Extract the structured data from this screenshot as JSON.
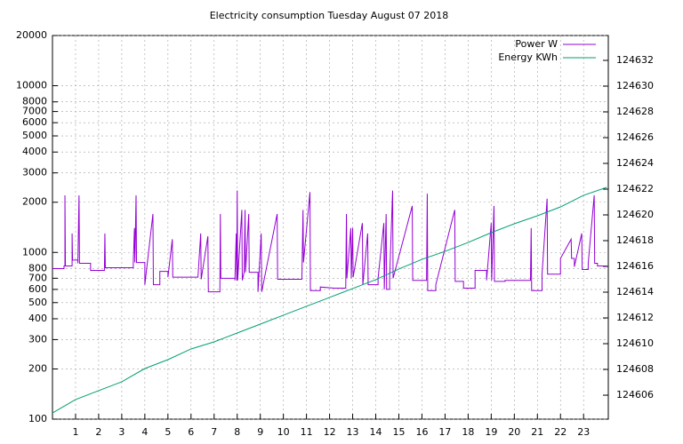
{
  "chart_data": {
    "type": "line",
    "title": "Electricity consumption Tuesday August 07 2018",
    "xlim": [
      0,
      24.07
    ],
    "xticks": [
      1,
      2,
      3,
      4,
      5,
      6,
      7,
      8,
      9,
      10,
      11,
      12,
      13,
      14,
      15,
      16,
      17,
      18,
      19,
      20,
      21,
      22,
      23
    ],
    "ylim": [
      100,
      20000
    ],
    "ylog": true,
    "yticks": [
      100,
      200,
      300,
      400,
      500,
      600,
      700,
      800,
      1000,
      2000,
      3000,
      4000,
      5000,
      6000,
      7000,
      8000,
      10000,
      20000
    ],
    "y2lim": [
      124604.14,
      124633.93
    ],
    "y2ticks": [
      124606,
      124608,
      124610,
      124612,
      124614,
      124616,
      124618,
      124620,
      124622,
      124624,
      124626,
      124628,
      124630,
      124632
    ],
    "grid": true,
    "legend": "top-right",
    "series": [
      {
        "name": "Power W",
        "color": "#9400d3",
        "x": [
          0,
          0.5,
          0.5,
          0.54,
          0.54,
          0.56,
          0.85,
          0.85,
          0.87,
          1.1,
          1.1,
          1.15,
          1.17,
          1.65,
          1.65,
          2.25,
          2.25,
          2.27,
          2.29,
          3.5,
          3.5,
          3.55,
          3.57,
          3.62,
          3.64,
          4.0,
          4.0,
          4.35,
          4.37,
          4.65,
          4.65,
          5.0,
          5.0,
          5.19,
          5.21,
          6.3,
          6.42,
          6.44,
          6.73,
          6.75,
          7.25,
          7.27,
          7.29,
          7.9,
          7.9,
          7.96,
          7.98,
          8.0,
          8.02,
          8.2,
          8.22,
          8.3,
          8.34,
          8.36,
          8.5,
          8.52,
          8.9,
          8.9,
          9.04,
          9.06,
          9.73,
          9.75,
          10.8,
          10.85,
          10.87,
          11.15,
          11.17,
          11.6,
          11.6,
          12.2,
          12.7,
          12.73,
          12.75,
          12.92,
          12.94,
          13.0,
          13.02,
          13.42,
          13.44,
          13.65,
          13.67,
          14.1,
          14.1,
          14.35,
          14.37,
          14.45,
          14.47,
          14.6,
          14.6,
          14.73,
          14.75,
          15.58,
          15.6,
          16.2,
          16.23,
          16.25,
          16.6,
          16.6,
          17.42,
          17.44,
          17.8,
          17.8,
          18.3,
          18.3,
          18.8,
          18.8,
          19.0,
          19.02,
          19.12,
          19.14,
          19.6,
          19.6,
          20.7,
          20.73,
          20.75,
          21.2,
          21.2,
          21.42,
          21.44,
          22.0,
          22.0,
          22.46,
          22.48,
          22.6,
          22.6,
          22.92,
          22.94,
          23.2,
          23.2,
          23.46,
          23.48,
          23.6,
          23.6,
          24.0
        ],
        "values": [
          800,
          800,
          830,
          830,
          2200,
          830,
          830,
          1300,
          900,
          900,
          860,
          2200,
          860,
          860,
          780,
          780,
          810,
          1300,
          810,
          810,
          870,
          1400,
          870,
          2200,
          870,
          870,
          640,
          1700,
          640,
          640,
          770,
          770,
          710,
          1200,
          710,
          710,
          1300,
          690,
          1250,
          580,
          580,
          1700,
          700,
          700,
          680,
          1300,
          680,
          2350,
          680,
          1800,
          680,
          760,
          1800,
          760,
          1700,
          760,
          760,
          580,
          1300,
          580,
          1700,
          690,
          690,
          1800,
          870,
          2300,
          590,
          590,
          620,
          610,
          610,
          1700,
          700,
          1400,
          700,
          1400,
          710,
          1500,
          640,
          1300,
          640,
          640,
          700,
          1500,
          600,
          1700,
          600,
          600,
          700,
          2350,
          700,
          1900,
          680,
          680,
          2250,
          590,
          590,
          640,
          1800,
          670,
          670,
          610,
          610,
          780,
          780,
          680,
          1500,
          680,
          1900,
          670,
          670,
          680,
          680,
          1400,
          590,
          590,
          740,
          2100,
          740,
          740,
          920,
          1200,
          920,
          920,
          820,
          1300,
          790,
          790,
          860,
          2200,
          860,
          860,
          830,
          830
        ]
      },
      {
        "name": "Energy KWh",
        "color": "#009e73",
        "axis": "y2",
        "x": [
          0,
          1,
          2,
          3,
          4,
          5,
          6,
          7,
          8,
          9,
          10,
          11,
          12,
          13,
          14,
          15,
          16,
          17,
          18,
          19,
          20,
          21,
          22,
          23,
          24
        ],
        "values": [
          124604.62,
          124605.66,
          124606.35,
          124607.04,
          124608.07,
          124608.76,
          124609.59,
          124610.14,
          124610.83,
          124611.52,
          124612.21,
          124612.9,
          124613.59,
          124614.28,
          124614.97,
          124615.8,
          124616.55,
          124617.17,
          124617.86,
          124618.62,
          124619.31,
          124619.93,
          124620.62,
          124621.52,
          124622.14
        ]
      }
    ]
  }
}
